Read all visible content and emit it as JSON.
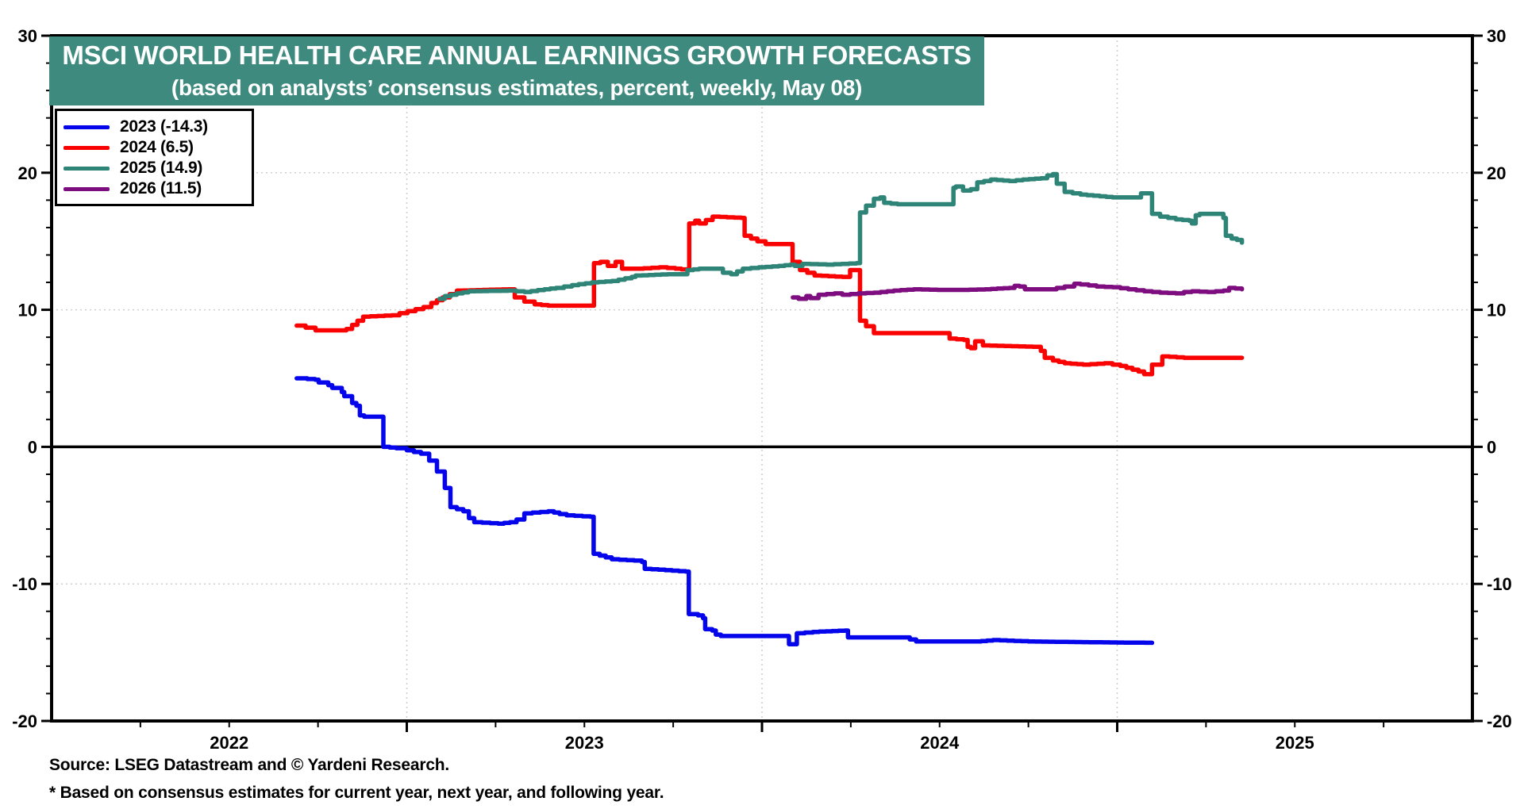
{
  "title": {
    "line1": "MSCI WORLD HEALTH CARE ANNUAL EARNINGS GROWTH FORECASTS",
    "line2": "(based on analysts’ consensus estimates, percent, weekly, May 08)"
  },
  "footer": {
    "source": "Source: LSEG Datastream and © Yardeni Research.",
    "note": "* Based on consensus estimates for current year, next year, and following year."
  },
  "colors": {
    "banner_bg": "#3F8A7E",
    "banner_text": "#FFFFFF",
    "axis": "#000000",
    "gridline": "#CDCDCD",
    "zero_line": "#000000",
    "series_2023": "#0505EC",
    "series_2024": "#FA0202",
    "series_2025": "#2F8478",
    "series_2026": "#7E0D80"
  },
  "legend": {
    "items": [
      {
        "label": "2023 (-14.3)",
        "color": "#0505EC"
      },
      {
        "label": "2024 (6.5)",
        "color": "#FA0202"
      },
      {
        "label": "2025 (14.9)",
        "color": "#2F8478"
      },
      {
        "label": "2026 (11.5)",
        "color": "#7E0D80"
      }
    ]
  },
  "chart_data": {
    "type": "line",
    "title": "MSCI WORLD HEALTH CARE ANNUAL EARNINGS GROWTH FORECASTS",
    "subtitle": "(based on analysts’ consensus estimates, percent, weekly, May 08)",
    "ylabel": "percent",
    "x_axis": {
      "start": 2022,
      "end": 2026,
      "year_labels": [
        "2022",
        "2023",
        "2024",
        "2025"
      ],
      "gridline_years": [
        2023,
        2024,
        2025
      ],
      "minor_tick_interval_years": 0.25
    },
    "y_axis": {
      "min": -20,
      "max": 30,
      "major_ticks": [
        30,
        20,
        10,
        0,
        -10,
        -20
      ],
      "minor_step": 2,
      "grid_dotted_at": [
        20,
        10,
        -10
      ],
      "labels_on_both_sides": true
    },
    "zero_line": 0,
    "series": [
      {
        "name": "2023",
        "final_value": -14.3,
        "color": "#0505EC",
        "points": [
          [
            2022.69,
            5.0
          ],
          [
            2022.72,
            4.95
          ],
          [
            2022.742,
            4.9
          ],
          [
            2022.752,
            4.7
          ],
          [
            2022.779,
            4.5
          ],
          [
            2022.79,
            4.3
          ],
          [
            2022.817,
            4.0
          ],
          [
            2022.824,
            3.7
          ],
          [
            2022.846,
            3.2
          ],
          [
            2022.858,
            3.0
          ],
          [
            2022.868,
            2.3
          ],
          [
            2022.88,
            2.2
          ],
          [
            2022.928,
            2.2
          ],
          [
            2022.934,
            0.0
          ],
          [
            2022.97,
            -0.1
          ],
          [
            2023.0,
            -0.25
          ],
          [
            2023.04,
            -0.5
          ],
          [
            2023.063,
            -1.0
          ],
          [
            2023.085,
            -1.8
          ],
          [
            2023.107,
            -3.0
          ],
          [
            2023.123,
            -4.4
          ],
          [
            2023.159,
            -4.7
          ],
          [
            2023.175,
            -5.2
          ],
          [
            2023.19,
            -5.5
          ],
          [
            2023.257,
            -5.6
          ],
          [
            2023.29,
            -5.5
          ],
          [
            2023.309,
            -5.3
          ],
          [
            2023.331,
            -4.85
          ],
          [
            2023.398,
            -4.7
          ],
          [
            2023.43,
            -4.9
          ],
          [
            2023.45,
            -5.0
          ],
          [
            2023.517,
            -5.1
          ],
          [
            2023.526,
            -7.8
          ],
          [
            2023.577,
            -8.2
          ],
          [
            2023.64,
            -8.3
          ],
          [
            2023.662,
            -8.4
          ],
          [
            2023.67,
            -8.9
          ],
          [
            2023.785,
            -9.1
          ],
          [
            2023.794,
            -12.2
          ],
          [
            2023.82,
            -12.3
          ],
          [
            2023.834,
            -12.5
          ],
          [
            2023.84,
            -13.3
          ],
          [
            2023.86,
            -13.4
          ],
          [
            2023.87,
            -13.7
          ],
          [
            2023.884,
            -13.8
          ],
          [
            2024.069,
            -13.8
          ],
          [
            2024.076,
            -14.4
          ],
          [
            2024.098,
            -13.6
          ],
          [
            2024.143,
            -13.5
          ],
          [
            2024.233,
            -13.4
          ],
          [
            2024.242,
            -13.9
          ],
          [
            2024.398,
            -13.9
          ],
          [
            2024.434,
            -14.2
          ],
          [
            2024.6,
            -14.2
          ],
          [
            2024.65,
            -14.1
          ],
          [
            2024.75,
            -14.2
          ],
          [
            2024.9,
            -14.25
          ],
          [
            2025.098,
            -14.3
          ]
        ]
      },
      {
        "name": "2024",
        "final_value": 6.5,
        "color": "#FA0202",
        "points": [
          [
            2022.69,
            8.85
          ],
          [
            2022.715,
            8.7
          ],
          [
            2022.743,
            8.5
          ],
          [
            2022.81,
            8.5
          ],
          [
            2022.83,
            8.6
          ],
          [
            2022.846,
            8.9
          ],
          [
            2022.861,
            9.2
          ],
          [
            2022.877,
            9.5
          ],
          [
            2022.957,
            9.6
          ],
          [
            2023.002,
            9.9
          ],
          [
            2023.047,
            10.2
          ],
          [
            2023.069,
            10.5
          ],
          [
            2023.101,
            10.9
          ],
          [
            2023.141,
            11.4
          ],
          [
            2023.286,
            11.5
          ],
          [
            2023.304,
            10.9
          ],
          [
            2023.331,
            10.6
          ],
          [
            2023.36,
            10.4
          ],
          [
            2023.398,
            10.3
          ],
          [
            2023.521,
            10.3
          ],
          [
            2023.527,
            13.4
          ],
          [
            2023.545,
            13.5
          ],
          [
            2023.566,
            13.2
          ],
          [
            2023.588,
            13.5
          ],
          [
            2023.606,
            13.0
          ],
          [
            2023.644,
            13.0
          ],
          [
            2023.711,
            13.1
          ],
          [
            2023.756,
            13.0
          ],
          [
            2023.79,
            12.9
          ],
          [
            2023.795,
            16.3
          ],
          [
            2023.812,
            16.5
          ],
          [
            2023.823,
            16.3
          ],
          [
            2023.861,
            16.8
          ],
          [
            2023.942,
            16.7
          ],
          [
            2023.951,
            15.4
          ],
          [
            2023.987,
            15.0
          ],
          [
            2024.01,
            14.8
          ],
          [
            2024.08,
            14.8
          ],
          [
            2024.086,
            13.5
          ],
          [
            2024.107,
            12.9
          ],
          [
            2024.148,
            12.5
          ],
          [
            2024.226,
            12.4
          ],
          [
            2024.248,
            12.9
          ],
          [
            2024.271,
            12.9
          ],
          [
            2024.276,
            9.2
          ],
          [
            2024.293,
            8.8
          ],
          [
            2024.315,
            8.3
          ],
          [
            2024.517,
            8.3
          ],
          [
            2024.528,
            7.9
          ],
          [
            2024.568,
            7.8
          ],
          [
            2024.579,
            7.3
          ],
          [
            2024.588,
            7.2
          ],
          [
            2024.6,
            7.7
          ],
          [
            2024.622,
            7.4
          ],
          [
            2024.763,
            7.3
          ],
          [
            2024.785,
            7.0
          ],
          [
            2024.796,
            6.5
          ],
          [
            2024.819,
            6.3
          ],
          [
            2024.852,
            6.1
          ],
          [
            2024.904,
            6.0
          ],
          [
            2024.964,
            6.1
          ],
          [
            2025.009,
            5.9
          ],
          [
            2025.06,
            5.5
          ],
          [
            2025.076,
            5.3
          ],
          [
            2025.098,
            6.0
          ],
          [
            2025.127,
            6.6
          ],
          [
            2025.188,
            6.5
          ],
          [
            2025.311,
            6.5
          ],
          [
            2025.351,
            6.5
          ]
        ]
      },
      {
        "name": "2025",
        "final_value": 14.9,
        "color": "#2F8478",
        "points": [
          [
            2023.092,
            10.8
          ],
          [
            2023.107,
            11.0
          ],
          [
            2023.141,
            11.2
          ],
          [
            2023.174,
            11.35
          ],
          [
            2023.286,
            11.4
          ],
          [
            2023.331,
            11.3
          ],
          [
            2023.387,
            11.5
          ],
          [
            2023.42,
            11.6
          ],
          [
            2023.465,
            11.8
          ],
          [
            2023.521,
            12.0
          ],
          [
            2023.577,
            12.1
          ],
          [
            2023.633,
            12.4
          ],
          [
            2023.644,
            12.5
          ],
          [
            2023.734,
            12.6
          ],
          [
            2023.778,
            12.6
          ],
          [
            2023.79,
            12.9
          ],
          [
            2023.823,
            13.0
          ],
          [
            2023.868,
            13.0
          ],
          [
            2023.89,
            12.7
          ],
          [
            2023.913,
            12.6
          ],
          [
            2023.946,
            13.0
          ],
          [
            2023.991,
            13.1
          ],
          [
            2024.047,
            13.2
          ],
          [
            2024.08,
            13.3
          ],
          [
            2024.092,
            13.2
          ],
          [
            2024.114,
            13.35
          ],
          [
            2024.181,
            13.3
          ],
          [
            2024.266,
            13.4
          ],
          [
            2024.276,
            17.1
          ],
          [
            2024.293,
            17.6
          ],
          [
            2024.315,
            18.1
          ],
          [
            2024.333,
            18.2
          ],
          [
            2024.344,
            17.8
          ],
          [
            2024.382,
            17.7
          ],
          [
            2024.517,
            17.7
          ],
          [
            2024.539,
            18.9
          ],
          [
            2024.546,
            19.0
          ],
          [
            2024.566,
            18.7
          ],
          [
            2024.588,
            18.8
          ],
          [
            2024.606,
            19.3
          ],
          [
            2024.644,
            19.5
          ],
          [
            2024.696,
            19.4
          ],
          [
            2024.734,
            19.5
          ],
          [
            2024.785,
            19.6
          ],
          [
            2024.803,
            19.8
          ],
          [
            2024.819,
            19.9
          ],
          [
            2024.83,
            19.2
          ],
          [
            2024.852,
            18.6
          ],
          [
            2024.897,
            18.4
          ],
          [
            2024.987,
            18.2
          ],
          [
            2025.054,
            18.2
          ],
          [
            2025.067,
            18.5
          ],
          [
            2025.087,
            18.5
          ],
          [
            2025.098,
            17.0
          ],
          [
            2025.121,
            16.8
          ],
          [
            2025.165,
            16.6
          ],
          [
            2025.203,
            16.5
          ],
          [
            2025.21,
            16.3
          ],
          [
            2025.221,
            16.9
          ],
          [
            2025.232,
            17.0
          ],
          [
            2025.277,
            17.0
          ],
          [
            2025.299,
            16.7
          ],
          [
            2025.306,
            15.4
          ],
          [
            2025.322,
            15.2
          ],
          [
            2025.337,
            15.1
          ],
          [
            2025.351,
            14.9
          ]
        ]
      },
      {
        "name": "2026",
        "final_value": 11.5,
        "color": "#7E0D80",
        "points": [
          [
            2024.087,
            10.9
          ],
          [
            2024.103,
            10.8
          ],
          [
            2024.125,
            11.0
          ],
          [
            2024.136,
            10.85
          ],
          [
            2024.159,
            11.1
          ],
          [
            2024.204,
            11.2
          ],
          [
            2024.226,
            11.1
          ],
          [
            2024.271,
            11.2
          ],
          [
            2024.315,
            11.25
          ],
          [
            2024.371,
            11.4
          ],
          [
            2024.427,
            11.5
          ],
          [
            2024.494,
            11.45
          ],
          [
            2024.561,
            11.45
          ],
          [
            2024.628,
            11.5
          ],
          [
            2024.696,
            11.6
          ],
          [
            2024.711,
            11.75
          ],
          [
            2024.725,
            11.7
          ],
          [
            2024.74,
            11.5
          ],
          [
            2024.807,
            11.5
          ],
          [
            2024.852,
            11.7
          ],
          [
            2024.879,
            11.9
          ],
          [
            2024.897,
            11.85
          ],
          [
            2024.942,
            11.7
          ],
          [
            2024.987,
            11.65
          ],
          [
            2025.031,
            11.5
          ],
          [
            2025.076,
            11.35
          ],
          [
            2025.121,
            11.25
          ],
          [
            2025.165,
            11.2
          ],
          [
            2025.188,
            11.3
          ],
          [
            2025.21,
            11.35
          ],
          [
            2025.254,
            11.3
          ],
          [
            2025.299,
            11.4
          ],
          [
            2025.315,
            11.6
          ],
          [
            2025.333,
            11.55
          ],
          [
            2025.351,
            11.5
          ]
        ]
      }
    ]
  }
}
